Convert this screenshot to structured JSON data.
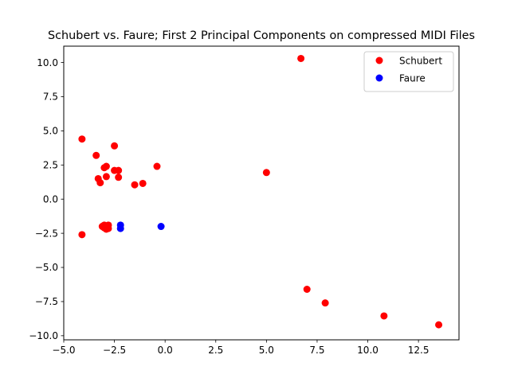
{
  "chart_data": {
    "type": "scatter",
    "title": "Schubert vs. Faure; First 2 Principal Components on compressed MIDI Files",
    "xlabel": "",
    "ylabel": "",
    "xlim": [
      -5.0,
      14.5
    ],
    "ylim": [
      -10.3,
      11.2
    ],
    "xticks": [
      -5.0,
      -2.5,
      0.0,
      2.5,
      5.0,
      7.5,
      10.0,
      12.5
    ],
    "yticks": [
      -10.0,
      -7.5,
      -5.0,
      -2.5,
      0.0,
      2.5,
      5.0,
      7.5,
      10.0
    ],
    "xtick_labels": [
      "−5.0",
      "−2.5",
      "0.0",
      "2.5",
      "5.0",
      "7.5",
      "10.0",
      "12.5"
    ],
    "ytick_labels": [
      "−10.0",
      "−7.5",
      "−5.0",
      "−2.5",
      "0.0",
      "2.5",
      "5.0",
      "7.5",
      "10.0"
    ],
    "grid": false,
    "legend_position": "top-right",
    "series": [
      {
        "name": "Schubert",
        "color": "#ff0000",
        "points": [
          [
            -4.1,
            4.4
          ],
          [
            -3.4,
            3.2
          ],
          [
            -2.5,
            3.9
          ],
          [
            -0.4,
            2.4
          ],
          [
            -2.9,
            2.4
          ],
          [
            -3.0,
            2.3
          ],
          [
            -2.5,
            2.1
          ],
          [
            -2.3,
            2.1
          ],
          [
            -2.9,
            1.65
          ],
          [
            -2.3,
            1.6
          ],
          [
            -3.3,
            1.5
          ],
          [
            -3.2,
            1.2
          ],
          [
            -1.1,
            1.15
          ],
          [
            -1.5,
            1.05
          ],
          [
            5.0,
            1.95
          ],
          [
            6.7,
            10.3
          ],
          [
            -4.1,
            -2.6
          ],
          [
            -3.0,
            -1.9
          ],
          [
            -2.8,
            -1.9
          ],
          [
            -3.0,
            -2.1
          ],
          [
            -2.9,
            -2.2
          ],
          [
            -3.1,
            -2.0
          ],
          [
            -2.8,
            -2.15
          ],
          [
            7.0,
            -6.6
          ],
          [
            7.9,
            -7.6
          ],
          [
            10.8,
            -8.55
          ],
          [
            13.5,
            -9.2
          ]
        ]
      },
      {
        "name": "Faure",
        "color": "#0000ff",
        "points": [
          [
            -2.2,
            -1.9
          ],
          [
            -2.2,
            -2.15
          ],
          [
            -0.2,
            -2.0
          ]
        ]
      }
    ]
  }
}
